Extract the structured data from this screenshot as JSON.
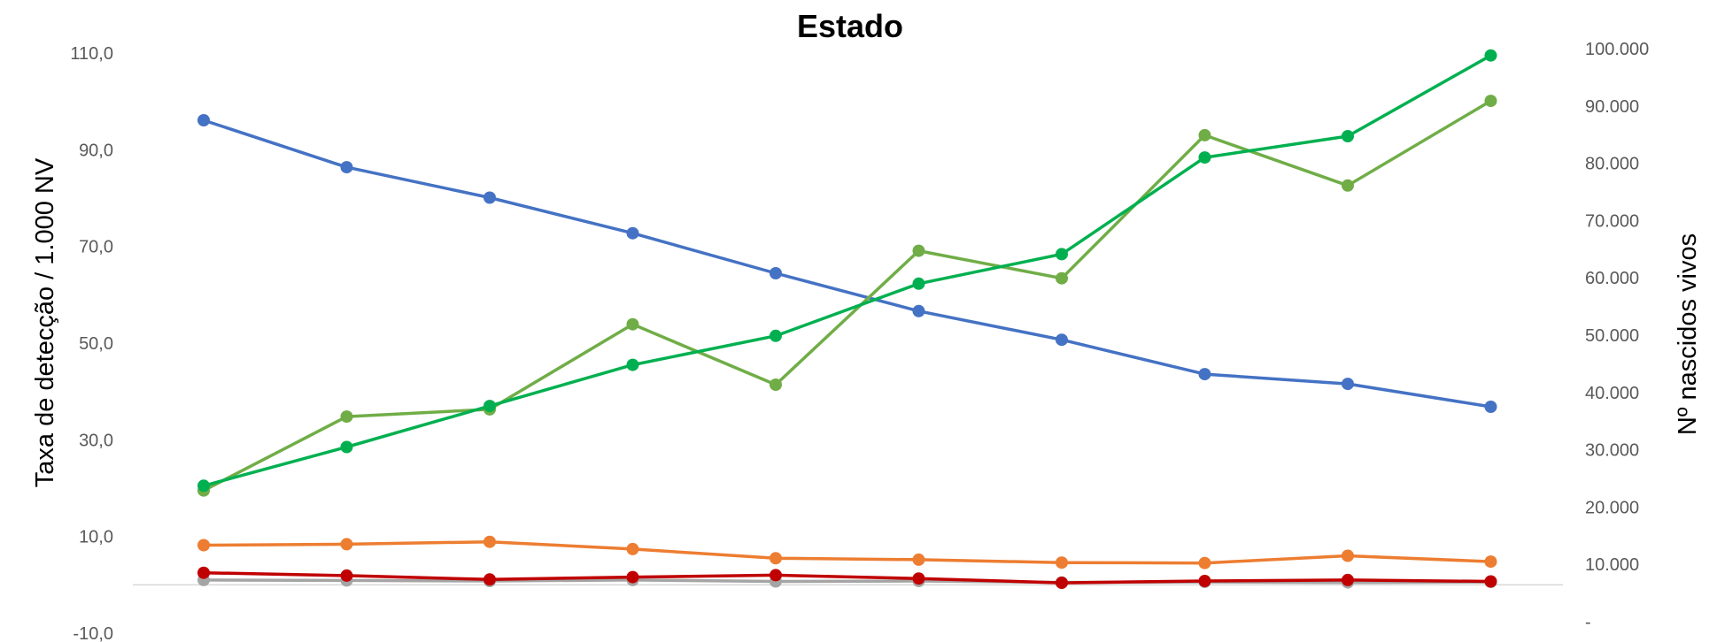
{
  "chart_data": {
    "type": "line",
    "title": "Estado",
    "ylabel_left": "Taxa de detecção / 1.000 NV",
    "ylabel_right": "Nº nascidos vivos",
    "x_tick_labels_visible": false,
    "categories": [
      "",
      "",
      "",
      "",
      "",
      "",
      "",
      "",
      "",
      ""
    ],
    "ylim_left": [
      -10,
      110
    ],
    "ylim_right": [
      0,
      100000
    ],
    "yticks_left": [
      "-10,0",
      "10,0",
      "30,0",
      "50,0",
      "70,0",
      "90,0",
      "110,0"
    ],
    "yticks_right": [
      "-",
      "10.000",
      "20.000",
      "30.000",
      "40.000",
      "50.000",
      "60.000",
      "70.000",
      "80.000",
      "90.000",
      "100.000"
    ],
    "grid": false,
    "legend": "none",
    "series": [
      {
        "axis": "right",
        "color": "#4472c4",
        "values": [
          87500,
          79300,
          74000,
          67800,
          60800,
          54200,
          49200,
          43200,
          41500,
          37500
        ]
      },
      {
        "axis": "left",
        "color": "#00b050",
        "values": [
          20.5,
          28.5,
          37.0,
          45.5,
          51.5,
          62.3,
          68.4,
          88.4,
          92.8,
          109.5
        ]
      },
      {
        "axis": "left",
        "color": "#70ad47",
        "values": [
          19.5,
          34.8,
          36.3,
          53.9,
          41.4,
          69.1,
          63.4,
          93.0,
          82.6,
          100.1
        ]
      },
      {
        "axis": "left",
        "color": "#ed7d31",
        "values": [
          8.2,
          8.4,
          8.9,
          7.4,
          5.5,
          5.2,
          4.6,
          4.5,
          6.0,
          4.8
        ]
      },
      {
        "axis": "left",
        "color": "#c00000",
        "values": [
          2.5,
          1.9,
          1.1,
          1.6,
          2.0,
          1.3,
          0.4,
          0.8,
          1.0,
          0.7
        ]
      },
      {
        "axis": "left",
        "color": "#a5a5a5",
        "values": [
          1.0,
          0.9,
          0.8,
          1.0,
          0.7,
          0.8,
          0.5,
          0.6,
          0.5,
          0.6
        ]
      }
    ]
  }
}
